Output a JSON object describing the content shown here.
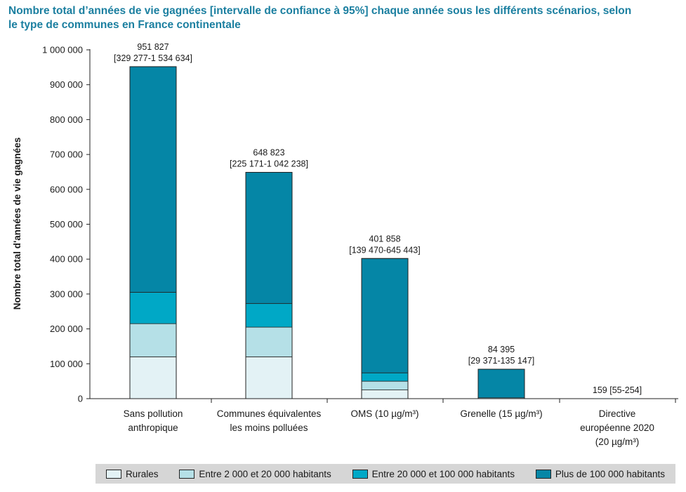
{
  "chart_data": {
    "type": "bar",
    "stacked": true,
    "title_lines": [
      "Nombre total d’années de vie gagnées [intervalle de confiance à 95%] chaque année sous les différents scénarios, selon",
      "le type de communes en France continentale"
    ],
    "ylabel": "Nombre total d'années de vie gagnées",
    "xlabel": "",
    "ylim": [
      0,
      1000000
    ],
    "yticks": [
      0,
      100000,
      200000,
      300000,
      400000,
      500000,
      600000,
      700000,
      800000,
      900000,
      1000000
    ],
    "ytick_labels": [
      "0",
      "100 000",
      "200 000",
      "300 000",
      "400 000",
      "500 000",
      "600 000",
      "700 000",
      "800 000",
      "900 000",
      "1 000 000"
    ],
    "categories": [
      [
        "Sans pollution",
        "anthropique"
      ],
      [
        "Communes équivalentes",
        "les moins polluées"
      ],
      [
        "OMS (10 µg/m³)"
      ],
      [
        "Grenelle (15 µg/m³)"
      ],
      [
        "Directive",
        "européenne 2020",
        "(20 µg/m³)"
      ]
    ],
    "series": [
      {
        "name": "Rurales",
        "color": "#e3f2f5",
        "values": [
          120000,
          120000,
          25000,
          1500,
          5
        ]
      },
      {
        "name": "Entre 2 000 et 20 000 habitants",
        "color": "#b5e0e7",
        "values": [
          95000,
          85000,
          25000,
          500,
          5
        ]
      },
      {
        "name": "Entre 20 000 et 100 000 habitants",
        "color": "#00a8c6",
        "values": [
          90000,
          68000,
          24000,
          400,
          5
        ]
      },
      {
        "name": "Plus de 100 000 habitants",
        "color": "#0586a6",
        "values": [
          646827,
          375823,
          327858,
          81995,
          144
        ]
      }
    ],
    "totals": [
      951827,
      648823,
      401858,
      84395,
      159
    ],
    "data_labels": [
      [
        "951 827",
        "[329 277-1 534 634]"
      ],
      [
        "648 823",
        "[225 171-1 042 238]"
      ],
      [
        "401 858",
        "[139 470-645 443]"
      ],
      [
        "84 395",
        "[29 371-135 147]"
      ],
      [
        "159 [55-254]"
      ]
    ],
    "legend_position": "bottom",
    "grid": false
  }
}
